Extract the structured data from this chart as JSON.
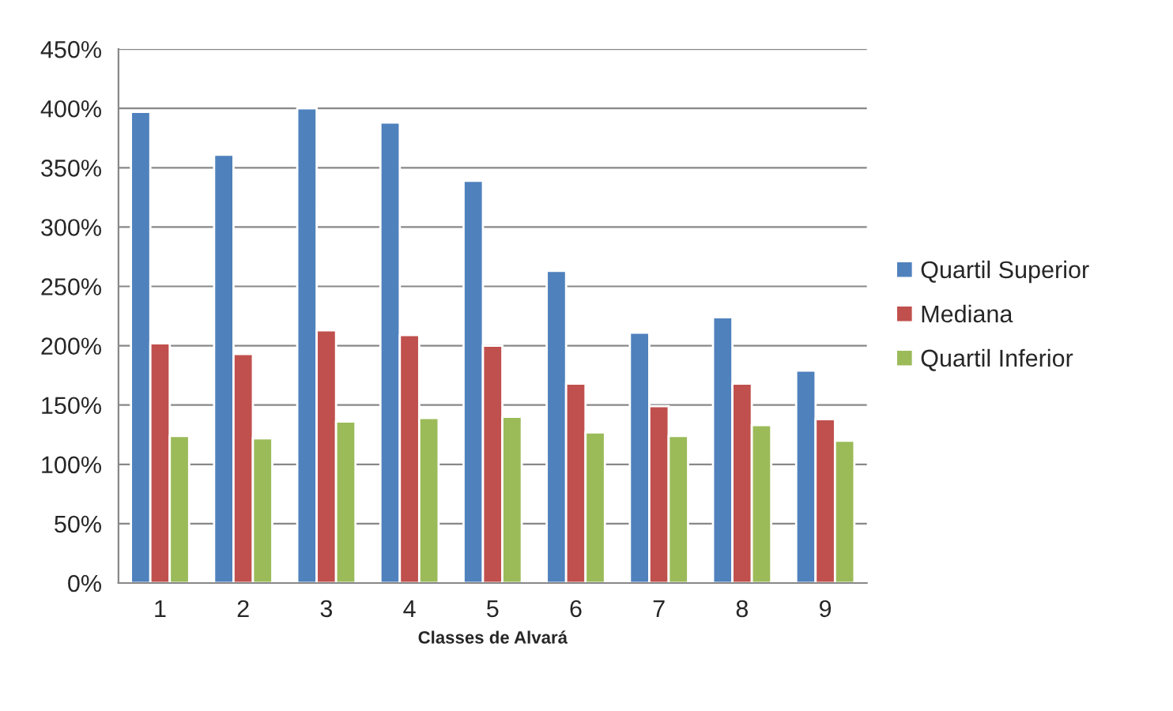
{
  "chart_data": {
    "type": "bar",
    "xlabel": "Classes de Alvará",
    "categories": [
      "1",
      "2",
      "3",
      "4",
      "5",
      "6",
      "7",
      "8",
      "9"
    ],
    "series": [
      {
        "name": "Quartil Superior",
        "color": "#4f81bd",
        "values": [
          397,
          361,
          400,
          388,
          339,
          263,
          211,
          224,
          179
        ]
      },
      {
        "name": "Mediana",
        "color": "#c0504d",
        "values": [
          202,
          193,
          213,
          209,
          200,
          168,
          149,
          168,
          138
        ]
      },
      {
        "name": "Quartil Inferior",
        "color": "#9bbb59",
        "values": [
          124,
          122,
          136,
          139,
          140,
          127,
          124,
          133,
          120
        ]
      }
    ],
    "ylim": [
      0,
      450
    ],
    "yticks": [
      {
        "value": 0,
        "label": "0%"
      },
      {
        "value": 50,
        "label": "50%"
      },
      {
        "value": 100,
        "label": "100%"
      },
      {
        "value": 150,
        "label": "150%"
      },
      {
        "value": 200,
        "label": "200%"
      },
      {
        "value": 250,
        "label": "250%"
      },
      {
        "value": 300,
        "label": "300%"
      },
      {
        "value": 350,
        "label": "350%"
      },
      {
        "value": 400,
        "label": "400%"
      },
      {
        "value": 450,
        "label": "450%"
      }
    ],
    "grid": "y",
    "legend": "right"
  }
}
